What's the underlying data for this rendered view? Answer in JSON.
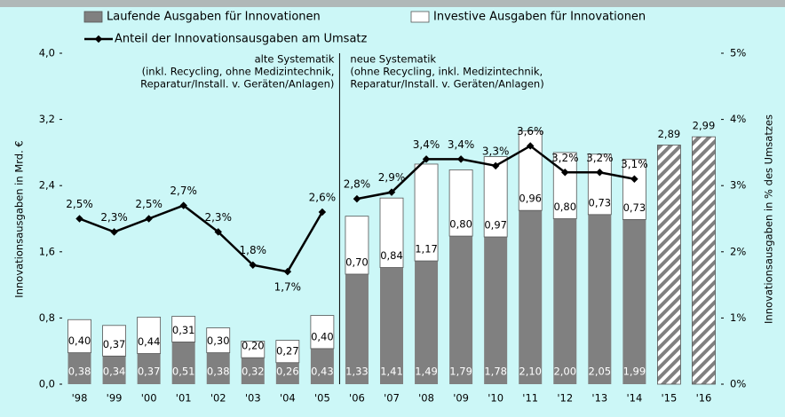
{
  "chart_data": {
    "type": "bar_line",
    "categories": [
      "'98",
      "'99",
      "'00",
      "'01",
      "'02",
      "'03",
      "'04",
      "'05",
      "'06",
      "'07",
      "'08",
      "'09",
      "'10",
      "'11",
      "'12",
      "'13",
      "'14",
      "'15",
      "'16"
    ],
    "series": [
      {
        "name": "Laufende Ausgaben für Innovationen",
        "color": "#808080",
        "values": [
          0.38,
          0.34,
          0.37,
          0.51,
          0.38,
          0.32,
          0.26,
          0.43,
          1.33,
          1.41,
          1.49,
          1.79,
          1.78,
          2.1,
          2.0,
          2.05,
          1.99,
          null,
          null
        ],
        "value_labels": [
          "0,38",
          "0,34",
          "0,37",
          "0,51",
          "0,38",
          "0,32",
          "0,26",
          "0,43",
          "1,33",
          "1,41",
          "1,49",
          "1,79",
          "1,78",
          "2,10",
          "2,00",
          "2,05",
          "1,99",
          null,
          null
        ]
      },
      {
        "name": "Investive Ausgaben für Innovationen",
        "color": "#ffffff",
        "values": [
          0.4,
          0.37,
          0.44,
          0.31,
          0.3,
          0.2,
          0.27,
          0.4,
          0.7,
          0.84,
          1.17,
          0.8,
          0.97,
          0.96,
          0.8,
          0.73,
          0.73,
          null,
          null
        ],
        "value_labels": [
          "0,40",
          "0,37",
          "0,44",
          "0,31",
          "0,30",
          "0,20",
          "0,27",
          "0,40",
          "0,70",
          "0,84",
          "1,17",
          "0,80",
          "0,97",
          "0,96",
          "0,80",
          "0,73",
          "0,73",
          null,
          null
        ]
      },
      {
        "color": "#808080",
        "hatched": true,
        "values": [
          null,
          null,
          null,
          null,
          null,
          null,
          null,
          null,
          null,
          null,
          null,
          null,
          null,
          null,
          null,
          null,
          null,
          2.89,
          2.99
        ],
        "value_labels": [
          null,
          null,
          null,
          null,
          null,
          null,
          null,
          null,
          null,
          null,
          null,
          null,
          null,
          null,
          null,
          null,
          null,
          "2,89",
          "2,99"
        ]
      },
      {
        "name": "Anteil der Innovationsausgaben am Umsatz",
        "color": "#000000",
        "axis": "y2",
        "values": [
          2.5,
          2.3,
          2.5,
          2.7,
          2.3,
          1.8,
          1.7,
          2.6,
          2.8,
          2.9,
          3.4,
          3.4,
          3.3,
          3.6,
          3.2,
          3.2,
          3.1,
          null,
          null
        ],
        "value_labels": [
          "2,5%",
          "2,3%",
          "2,5%",
          "2,7%",
          "2,3%",
          "1,8%",
          "1,7%",
          "2,6%",
          "2,8%",
          "2,9%",
          "3,4%",
          "3,4%",
          "3,3%",
          "3,6%",
          "3,2%",
          "3,2%",
          "3,1%",
          null,
          null
        ]
      }
    ],
    "segments": [
      {
        "lines": [
          "alte Systematik",
          "(inkl. Recycling, ohne Medizintechnik,",
          "Reparatur/Install. v. Geräten/Anlagen)"
        ],
        "from": "'98",
        "to": "'05"
      },
      {
        "lines": [
          "neue Systematik",
          "(ohne Recycling, inkl. Medizintechnik,",
          "Reparatur/Install. v. Geräten/Anlagen)"
        ],
        "from": "'06",
        "to": "'16"
      }
    ],
    "ylabel": "Innovationsausgaben in Mrd. €",
    "y2label": "Innovationsausgaben in % des Umsatzes",
    "ylim": [
      0,
      4
    ],
    "yticks": [
      {
        "value": 0,
        "label": "0,0"
      },
      {
        "value": 0.8,
        "label": "0,8"
      },
      {
        "value": 1.6,
        "label": "1,6"
      },
      {
        "value": 2.4,
        "label": "2,4"
      },
      {
        "value": 3.2,
        "label": "3,2"
      },
      {
        "value": 4,
        "label": "4,0"
      }
    ],
    "y2lim": [
      0,
      5
    ],
    "y2ticks": [
      {
        "value": 0,
        "label": "0%"
      },
      {
        "value": 1,
        "label": "1%"
      },
      {
        "value": 2,
        "label": "2%"
      },
      {
        "value": 3,
        "label": "3%"
      },
      {
        "value": 4,
        "label": "4%"
      },
      {
        "value": 5,
        "label": "5%"
      }
    ]
  }
}
